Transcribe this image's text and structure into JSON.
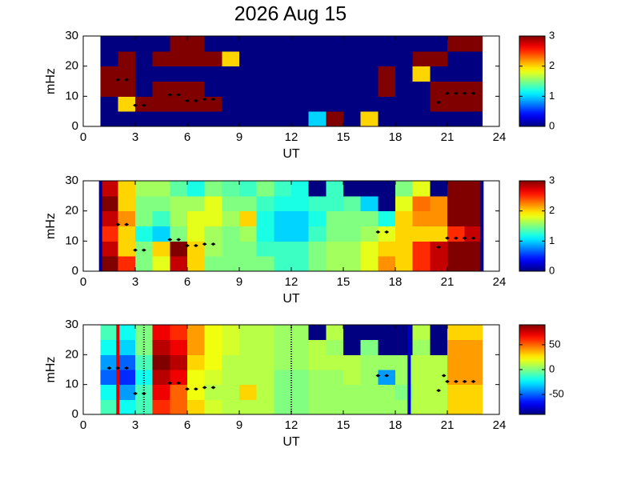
{
  "chart_data": [
    {
      "type": "heatmap",
      "title": "2026 Aug 15",
      "xlabel": "UT",
      "ylabel": "mHz",
      "colormap": "jet",
      "xlim": [
        0,
        24
      ],
      "xticks": [
        0,
        3,
        6,
        9,
        12,
        15,
        18,
        21,
        24
      ],
      "ylim": [
        0,
        30
      ],
      "yticks": [
        0,
        10,
        20,
        30
      ],
      "clim": [
        0,
        3
      ],
      "cticks": [
        0,
        1,
        2,
        3
      ],
      "x": [
        1.5,
        2.5,
        3.5,
        4.5,
        5.5,
        6.5,
        7.5,
        8.5,
        9.5,
        10.5,
        11.5,
        12.5,
        13.5,
        14.5,
        15.5,
        16.5,
        17.5,
        18.5,
        19.5,
        20.5,
        21.5,
        22.5
      ],
      "y": [
        2.5,
        7.5,
        12.5,
        17.5,
        22.5,
        27.5
      ],
      "z": [
        [
          0,
          0,
          0,
          0,
          0,
          0,
          0,
          0,
          0,
          0,
          0,
          0,
          1,
          3,
          0,
          2,
          0,
          0,
          0,
          0,
          0,
          0
        ],
        [
          0,
          2,
          3,
          3,
          3,
          3,
          3,
          0,
          0,
          0,
          0,
          0,
          0,
          0,
          0,
          0,
          0,
          0,
          0,
          3,
          3,
          3
        ],
        [
          3,
          3,
          0,
          3,
          3,
          3,
          0,
          0,
          0,
          0,
          0,
          0,
          0,
          0,
          0,
          0,
          3,
          0,
          0,
          3,
          3,
          3
        ],
        [
          3,
          3,
          0,
          0,
          0,
          0,
          0,
          0,
          0,
          0,
          0,
          0,
          0,
          0,
          0,
          0,
          3,
          0,
          2,
          0,
          0,
          0
        ],
        [
          0,
          3,
          0,
          3,
          3,
          3,
          3,
          2,
          0,
          0,
          0,
          0,
          0,
          0,
          0,
          0,
          0,
          0,
          3,
          3,
          0,
          0
        ],
        [
          0,
          0,
          0,
          0,
          3,
          3,
          0,
          0,
          0,
          0,
          0,
          0,
          0,
          0,
          0,
          0,
          0,
          0,
          0,
          0,
          3,
          3
        ]
      ],
      "points": {
        "x": [
          2,
          2.5,
          3,
          3.5,
          5,
          5.5,
          6,
          6.5,
          7,
          7.5,
          20.5,
          21,
          21.5,
          22,
          22.5
        ],
        "y": [
          15.5,
          15.5,
          7,
          7,
          10.5,
          10.5,
          8.5,
          8.5,
          9,
          9,
          8,
          11,
          11,
          11,
          11
        ]
      },
      "vlines": []
    },
    {
      "type": "heatmap",
      "xlabel": "UT",
      "ylabel": "mHz",
      "colormap": "jet",
      "xlim": [
        0,
        24
      ],
      "xticks": [
        0,
        3,
        6,
        9,
        12,
        15,
        18,
        21,
        24
      ],
      "ylim": [
        0,
        30
      ],
      "yticks": [
        0,
        10,
        20,
        30
      ],
      "clim": [
        0,
        3
      ],
      "cticks": [
        0,
        1,
        2,
        3
      ],
      "x": [
        1.5,
        2.5,
        3.5,
        4.5,
        5.5,
        6.5,
        7.5,
        8.5,
        9.5,
        10.5,
        11.5,
        12.5,
        13.5,
        14.5,
        15.5,
        16.5,
        17.5,
        18.5,
        19.5,
        20.5,
        21.5,
        22.5
      ],
      "y": [
        2.5,
        7.5,
        12.5,
        17.5,
        22.5,
        27.5
      ],
      "z": [
        [
          3,
          2.5,
          1.5,
          1.8,
          2.8,
          2,
          1.5,
          1.5,
          1.5,
          1.5,
          1.3,
          1.3,
          1.5,
          1.6,
          1.6,
          1.8,
          2.2,
          2,
          2.5,
          2.8,
          3,
          3
        ],
        [
          2.8,
          2,
          1.5,
          2,
          3,
          2,
          1.6,
          1.5,
          1.5,
          1.3,
          1.3,
          1.3,
          1.5,
          1.6,
          1.6,
          1.8,
          2,
          2,
          2.5,
          2.8,
          3,
          3
        ],
        [
          2.5,
          2,
          1.2,
          1,
          1.5,
          1.8,
          1.6,
          1.5,
          1.6,
          1.2,
          1,
          1,
          1.3,
          1.5,
          1.5,
          1.6,
          1.8,
          2,
          2,
          2,
          2.5,
          2.8
        ],
        [
          2.8,
          2.2,
          1.5,
          1.3,
          1.6,
          1.8,
          1.8,
          1.6,
          2,
          1.2,
          1,
          1,
          1.2,
          1.5,
          1.5,
          1.5,
          1.2,
          2,
          2.2,
          2.2,
          3,
          3
        ],
        [
          3,
          2,
          1.5,
          1.5,
          1.6,
          1.6,
          1.8,
          1.5,
          1.5,
          1.3,
          1.2,
          1.2,
          1.3,
          1.3,
          1.4,
          1,
          0,
          1.8,
          2.3,
          2.2,
          3,
          3
        ],
        [
          2.8,
          2,
          1.6,
          1.6,
          1.4,
          1.2,
          1.5,
          1.4,
          1.3,
          1.5,
          1.3,
          1.2,
          0,
          1.3,
          0,
          0,
          0,
          1.5,
          1.8,
          0,
          3,
          3
        ]
      ],
      "points": {
        "x": [
          2,
          2.5,
          3,
          3.5,
          5,
          5.5,
          6,
          6.5,
          7,
          7.5,
          17,
          17.5,
          20.5,
          21,
          21.5,
          22,
          22.5
        ],
        "y": [
          15.5,
          15.5,
          7,
          7,
          10.5,
          10.5,
          8.5,
          8.5,
          9,
          9,
          13,
          13,
          8,
          11,
          11,
          11,
          11
        ]
      },
      "vlines": [
        {
          "x": 1,
          "color": "#00008f",
          "style": "solid"
        },
        {
          "x": 23,
          "color": "#00008f",
          "style": "solid"
        }
      ]
    },
    {
      "type": "heatmap",
      "xlabel": "UT",
      "ylabel": "mHz",
      "colormap": "jet",
      "xlim": [
        0,
        24
      ],
      "xticks": [
        0,
        3,
        6,
        9,
        12,
        15,
        18,
        21,
        24
      ],
      "ylim": [
        0,
        30
      ],
      "yticks": [
        0,
        10,
        20,
        30
      ],
      "clim": [
        -90,
        90
      ],
      "cticks": [
        -50,
        0,
        50
      ],
      "x": [
        1.5,
        2.5,
        3.5,
        4.5,
        5.5,
        6.5,
        7.5,
        8.5,
        9.5,
        10.5,
        11.5,
        12.5,
        13.5,
        14.5,
        15.5,
        16.5,
        17.5,
        18.5,
        19.5,
        20.5,
        21.5,
        22.5
      ],
      "y": [
        2.5,
        7.5,
        12.5,
        17.5,
        22.5,
        27.5
      ],
      "z": [
        [
          -10,
          -20,
          -10,
          60,
          50,
          30,
          15,
          10,
          10,
          10,
          0,
          0,
          5,
          5,
          5,
          5,
          5,
          5,
          10,
          10,
          30,
          30
        ],
        [
          -20,
          -40,
          -10,
          70,
          50,
          20,
          10,
          10,
          30,
          10,
          0,
          0,
          5,
          5,
          5,
          5,
          5,
          0,
          10,
          10,
          30,
          30
        ],
        [
          -50,
          -60,
          -20,
          80,
          70,
          20,
          15,
          10,
          10,
          10,
          0,
          0,
          5,
          5,
          10,
          5,
          -40,
          5,
          10,
          10,
          40,
          40
        ],
        [
          -40,
          -50,
          -10,
          90,
          80,
          30,
          20,
          10,
          10,
          10,
          5,
          5,
          10,
          10,
          10,
          5,
          5,
          5,
          10,
          10,
          40,
          40
        ],
        [
          -20,
          -30,
          0,
          80,
          70,
          40,
          20,
          15,
          10,
          10,
          5,
          5,
          10,
          5,
          -90,
          0,
          -90,
          -90,
          5,
          -90,
          40,
          40
        ],
        [
          -10,
          -20,
          0,
          70,
          60,
          40,
          20,
          15,
          10,
          10,
          5,
          5,
          -90,
          10,
          -90,
          -90,
          -90,
          -90,
          10,
          -90,
          30,
          30
        ]
      ],
      "points": {
        "x": [
          1.5,
          2,
          2.5,
          3,
          3.5,
          5,
          5.5,
          6,
          6.5,
          7,
          7.5,
          17,
          17.5,
          20.5,
          20.8,
          21,
          21.5,
          22,
          22.5
        ],
        "y": [
          15.5,
          15.5,
          15.5,
          7,
          7,
          10.5,
          10.5,
          8.5,
          8.5,
          9,
          9,
          13,
          13,
          8,
          13,
          11,
          11,
          11,
          11
        ]
      },
      "vlines": [
        {
          "x": 2,
          "color": "#e00000",
          "style": "solid"
        },
        {
          "x": 3.5,
          "color": "#000000",
          "style": "dotted"
        },
        {
          "x": 12,
          "color": "#000000",
          "style": "dotted"
        },
        {
          "x": 18.8,
          "color": "#0000c0",
          "style": "solid"
        }
      ]
    }
  ]
}
